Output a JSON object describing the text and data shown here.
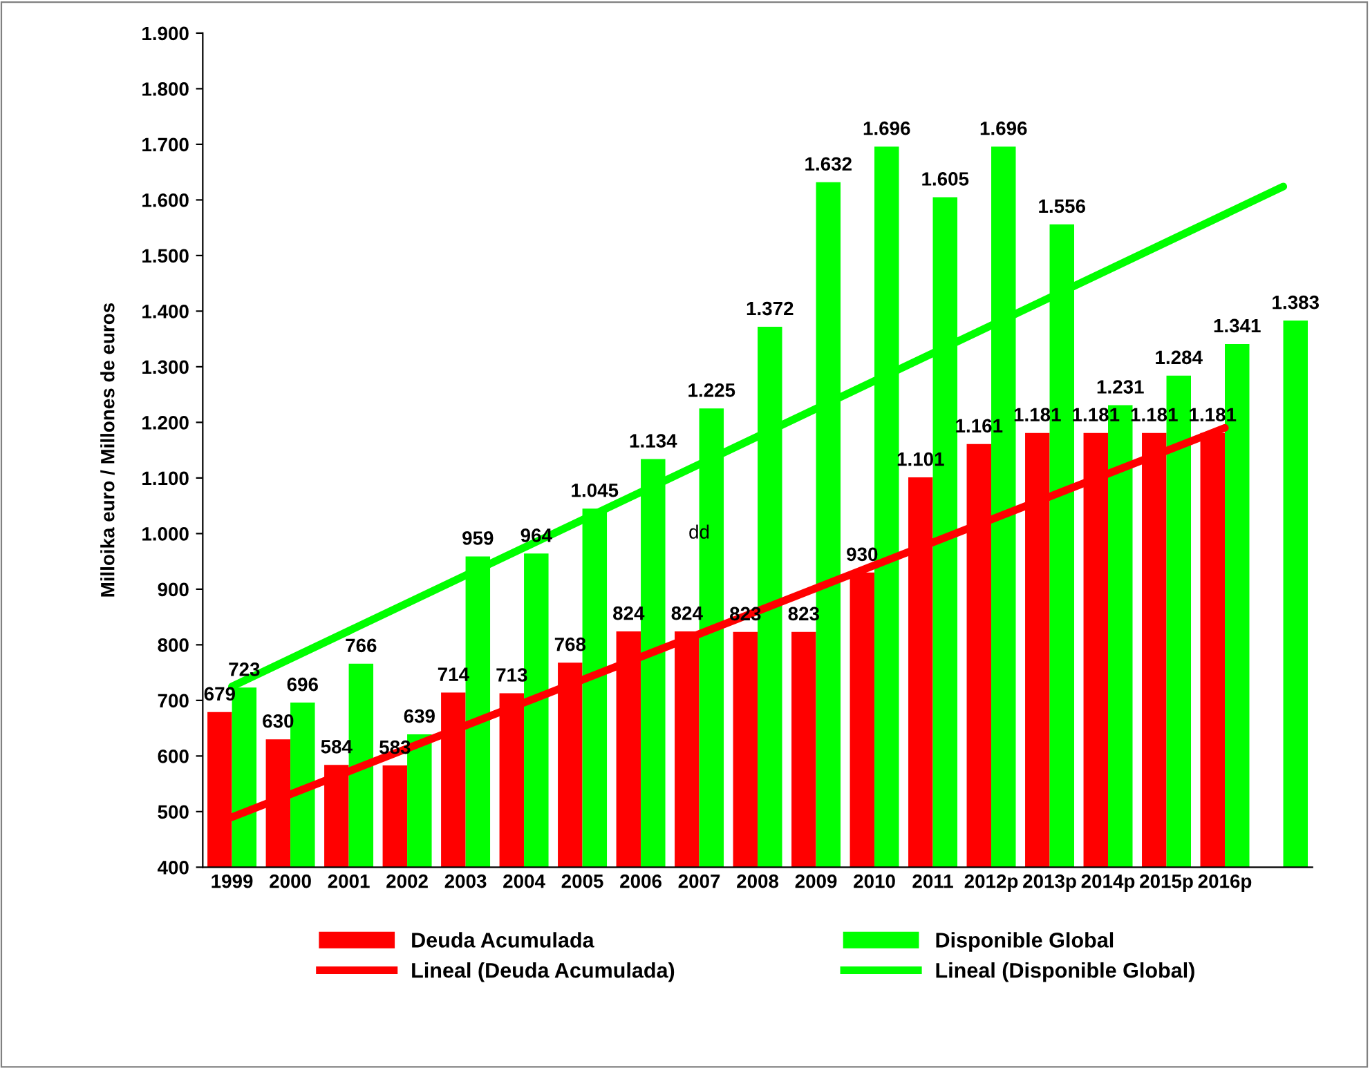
{
  "chart_data": {
    "type": "bar",
    "ylabel": "Milloika euro / Millones de euros",
    "categories": [
      "1999",
      "2000",
      "2001",
      "2002",
      "2003",
      "2004",
      "2005",
      "2006",
      "2007",
      "2008",
      "2009",
      "2010",
      "2011",
      "2012p",
      "2013p",
      "2014p",
      "2015p",
      "2016p",
      null
    ],
    "series": [
      {
        "name": "Deuda Acumulada",
        "color": "#ff0000",
        "values": [
          679,
          630,
          584,
          583,
          714,
          713,
          768,
          824,
          824,
          823,
          823,
          930,
          1101,
          1161,
          1181,
          1181,
          1181,
          1181,
          null
        ],
        "value_labels": [
          "679",
          "630",
          "584",
          "583",
          "714",
          "713",
          "768",
          "824",
          "824",
          "823",
          "823",
          "930",
          "1.101",
          "1.161",
          "1.181",
          "1.181",
          "1.181",
          "1.181",
          null
        ]
      },
      {
        "name": "Disponible Global",
        "color": "#00ff00",
        "values": [
          723,
          696,
          766,
          639,
          959,
          964,
          1045,
          1134,
          1225,
          1372,
          1632,
          1696,
          1605,
          1696,
          1556,
          1231,
          1284,
          1341,
          1383
        ],
        "value_labels": [
          "723",
          "696",
          "766",
          "639",
          "959",
          "964",
          "1.045",
          "1.134",
          "1.225",
          "1.372",
          "1.632",
          "1.696",
          "1.605",
          "1.696",
          "1.556",
          "1.231",
          "1.284",
          "1.341",
          "1.383"
        ]
      },
      {
        "name": "Lineal (Deuda Acumulada)",
        "type": "line",
        "color": "#ff0000",
        "values": [
          490,
          null,
          null,
          null,
          null,
          null,
          null,
          null,
          null,
          null,
          null,
          null,
          null,
          null,
          null,
          null,
          null,
          1190,
          null
        ]
      },
      {
        "name": "Lineal (Disponible Global)",
        "type": "line",
        "color": "#00ff00",
        "values": [
          725,
          null,
          null,
          null,
          null,
          null,
          null,
          null,
          null,
          null,
          null,
          null,
          null,
          null,
          null,
          null,
          null,
          null,
          1624
        ]
      }
    ],
    "annotations": [
      {
        "text": "dd",
        "x": "2007",
        "y": 1000
      }
    ],
    "ylim": [
      400,
      1900
    ],
    "yticks": [
      400,
      500,
      600,
      700,
      800,
      900,
      {
        "value": 1000,
        "label": "1.000"
      },
      {
        "value": 1100,
        "label": "1.100"
      },
      {
        "value": 1200,
        "label": "1.200"
      },
      {
        "value": 1300,
        "label": "1.300"
      },
      {
        "value": 1400,
        "label": "1.400"
      },
      {
        "value": 1500,
        "label": "1.500"
      },
      {
        "value": 1600,
        "label": "1.600"
      },
      {
        "value": 1700,
        "label": "1.700"
      },
      {
        "value": 1800,
        "label": "1.800"
      },
      {
        "value": 1900,
        "label": "1.900"
      }
    ],
    "grid": false,
    "legend": "bottom"
  }
}
